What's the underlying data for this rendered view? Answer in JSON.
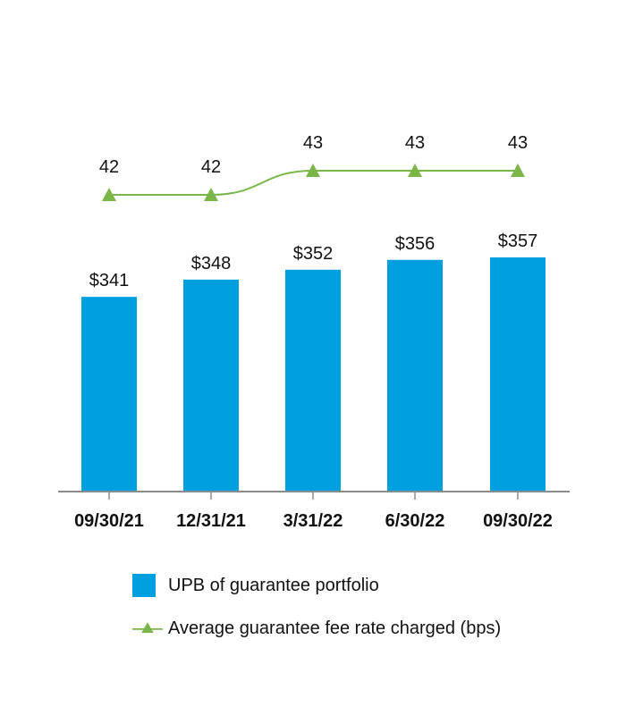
{
  "chart_data": {
    "type": "bar",
    "categories": [
      "09/30/21",
      "12/31/21",
      "3/31/22",
      "6/30/22",
      "09/30/22"
    ],
    "series": [
      {
        "name": "UPB of guarantee portfolio",
        "type": "bar",
        "values": [
          341,
          348,
          352,
          356,
          357
        ],
        "labels": [
          "$341",
          "$348",
          "$352",
          "$356",
          "$357"
        ],
        "color": "#009fdf"
      },
      {
        "name": "Average guarantee fee rate charged (bps)",
        "type": "line",
        "values": [
          42,
          42,
          43,
          43,
          43
        ],
        "labels": [
          "42",
          "42",
          "43",
          "43",
          "43"
        ],
        "color": "#7ab648",
        "marker": "triangle"
      }
    ],
    "legend_position": "bottom",
    "grid": false
  },
  "legend": {
    "bar_label": "UPB of guarantee portfolio",
    "line_label": "Average guarantee fee rate charged (bps)"
  }
}
